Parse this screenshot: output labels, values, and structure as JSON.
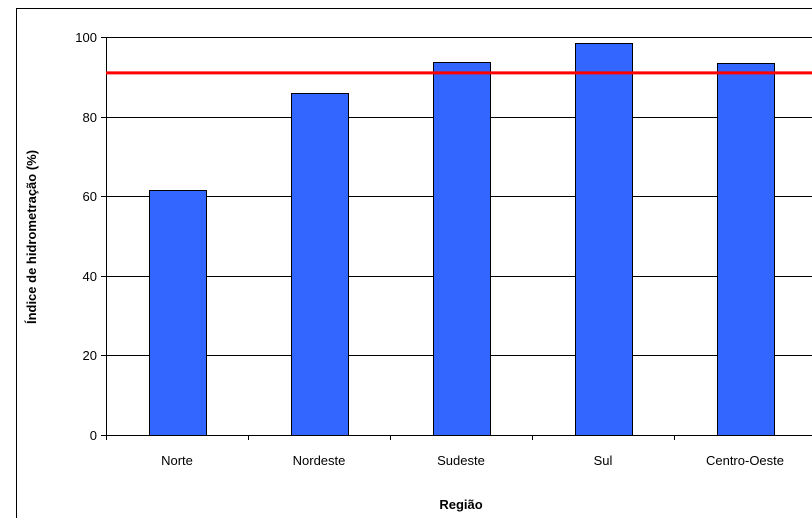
{
  "chart_data": {
    "type": "bar",
    "categories": [
      "Norte",
      "Nordeste",
      "Sudeste",
      "Sul",
      "Centro-Oeste"
    ],
    "values": [
      61.5,
      86,
      93.8,
      98.5,
      93.5
    ],
    "xlabel": "Região",
    "ylabel": "Índice de hidrometração (%)",
    "ylim": [
      0,
      100
    ],
    "yticks": [
      0,
      20,
      40,
      60,
      80,
      100
    ],
    "reference_line": 91,
    "grid": true,
    "colors": {
      "bar": "#3366ff",
      "reference_line": "#ff0000"
    }
  }
}
